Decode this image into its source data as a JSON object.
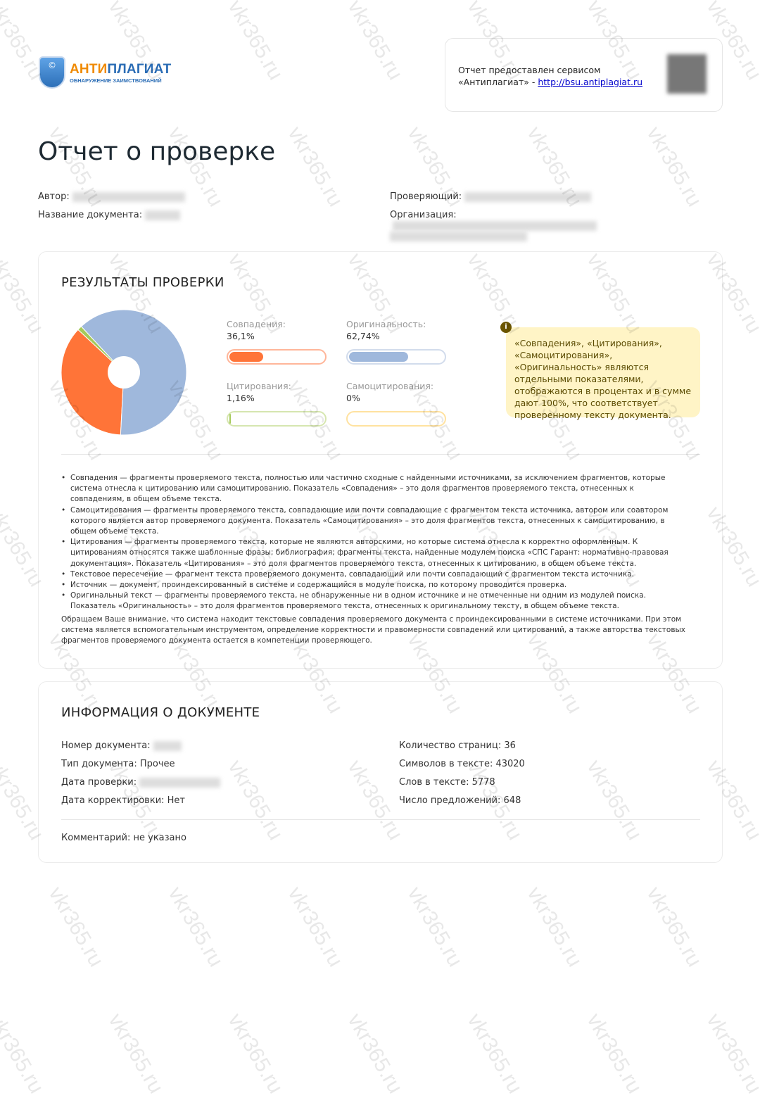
{
  "watermark": "vkr365.ru",
  "logo": {
    "part1": "АНТИ",
    "part2": "ПЛАГИАТ",
    "subtitle": "ОБНАРУЖЕНИЕ ЗАИМСТВОВАНИЙ",
    "icon": "copyright-shield-icon"
  },
  "service": {
    "line1": "Отчет предоставлен сервисом",
    "line2": "«Антиплагиат» - ",
    "link": "http://bsu.antiplagiat.ru"
  },
  "title": "Отчет о проверке",
  "meta": {
    "author_label": "Автор:",
    "docname_label": "Название документа:",
    "checker_label": "Проверяющий:",
    "org_label": "Организация:"
  },
  "results": {
    "heading": "РЕЗУЛЬТАТЫ ПРОВЕРКИ",
    "indicators": [
      {
        "label": "Совпадения:",
        "value": "36,1%",
        "percent": 36.1,
        "color": "#ff7438",
        "border": "#ffb69a"
      },
      {
        "label": "Оригинальность:",
        "value": "62,74%",
        "percent": 62.74,
        "color": "#9fb8dc",
        "border": "#d2dcec"
      },
      {
        "label": "Цитирования:",
        "value": "1,16%",
        "percent": 1.16,
        "color": "#a5c95a",
        "border": "#d6e6b0"
      },
      {
        "label": "Самоцитирования:",
        "value": "0%",
        "percent": 0,
        "color": "#ffd36b",
        "border": "#ffe2a0"
      }
    ],
    "note": "«Совпадения», «Цитирования», «Самоцитирования», «Оригинальность» являются отдельными показателями, отображаются в процентах и в сумме дают 100%, что соответствует проверенному тексту документа.",
    "definitions": [
      "Совпадения — фрагменты проверяемого текста, полностью или частично сходные с найденными источниками, за исключением фрагментов, которые система отнесла к цитированию или самоцитированию. Показатель «Совпадения» – это доля фрагментов проверяемого текста, отнесенных к совпадениям, в общем объеме текста.",
      "Самоцитирования — фрагменты проверяемого текста, совпадающие или почти совпадающие с фрагментом текста источника, автором или соавтором которого является автор проверяемого документа. Показатель «Самоцитирования» – это доля фрагментов текста, отнесенных к самоцитированию, в общем объеме текста.",
      "Цитирования — фрагменты проверяемого текста, которые не являются авторскими, но которые система отнесла к корректно оформленным. К цитированиям относятся также шаблонные фразы; библиография; фрагменты текста, найденные модулем поиска «СПС Гарант: нормативно-правовая документация». Показатель «Цитирования» – это доля фрагментов проверяемого текста, отнесенных к цитированию, в общем объеме текста.",
      "Текстовое пересечение — фрагмент текста проверяемого документа, совпадающий или почти совпадающий с фрагментом текста источника.",
      "Источник — документ, проиндексированный в системе и содержащийся в модуле поиска, по которому проводится проверка.",
      "Оригинальный текст — фрагменты проверяемого текста, не обнаруженные ни в одном источнике и не отмеченные ни одним из модулей поиска. Показатель «Оригинальность» – это доля фрагментов проверяемого текста, отнесенных к оригинальному тексту, в общем объеме текста."
    ],
    "attention": "Обращаем Ваше внимание, что система находит текстовые совпадения проверяемого документа с проиндексированными в системе источниками. При этом система является вспомогательным инструментом, определение корректности и правомерности совпадений или цитирований, а также авторства текстовых фрагментов проверяемого документа остается в компетенции проверяющего."
  },
  "docinfo": {
    "heading": "ИНФОРМАЦИЯ О ДОКУМЕНТЕ",
    "left": [
      "Номер документа:",
      "Тип документа: Прочее",
      "Дата проверки:",
      "Дата корректировки: Нет"
    ],
    "right": [
      "Количество страниц: 36",
      "Символов в тексте: 43020",
      "Слов в тексте: 5778",
      "Число предложений: 648"
    ],
    "comment": "Комментарий: не указано"
  }
}
